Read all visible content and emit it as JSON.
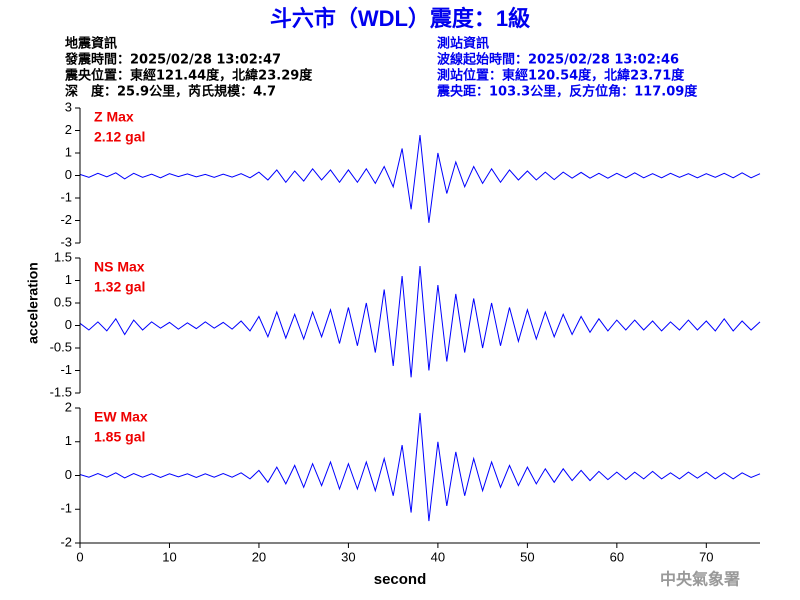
{
  "title": "斗六市（WDL）震度：1級",
  "event_info": [
    "地震資訊",
    "發震時間：2025/02/28 13:02:47",
    "震央位置：東經121.44度，北緯23.29度",
    "深　度：25.9公里，芮氏規模：4.7"
  ],
  "station_info": [
    "測站資訊",
    "波線起始時間：2025/02/28 13:02:46",
    "測站位置：東經120.54度，北緯23.71度",
    "震央距：103.3公里，反方位角：117.09度"
  ],
  "y_label": "acceleration",
  "x_label": "second",
  "footer": "中央氣象署",
  "chart_data": [
    {
      "type": "line",
      "annotation": "Z Max",
      "annotation_value": "2.12 gal",
      "color": "#0000ff",
      "annotation_color": "#ee0000",
      "xlim": [
        0,
        76
      ],
      "ylim": [
        -3,
        3
      ],
      "yticks": [
        -3,
        -2,
        -1,
        0,
        1,
        2,
        3
      ],
      "x": [
        0,
        1,
        2,
        3,
        4,
        5,
        6,
        7,
        8,
        9,
        10,
        11,
        12,
        13,
        14,
        15,
        16,
        17,
        18,
        19,
        20,
        21,
        22,
        23,
        24,
        25,
        26,
        27,
        28,
        29,
        30,
        31,
        32,
        33,
        34,
        35,
        36,
        37,
        38,
        39,
        40,
        41,
        42,
        43,
        44,
        45,
        46,
        47,
        48,
        49,
        50,
        51,
        52,
        53,
        54,
        55,
        56,
        57,
        58,
        59,
        60,
        61,
        62,
        63,
        64,
        65,
        66,
        67,
        68,
        69,
        70,
        71,
        72,
        73,
        74,
        75,
        76
      ],
      "values": [
        0.05,
        -0.08,
        0.1,
        -0.06,
        0.12,
        -0.15,
        0.1,
        -0.08,
        0.06,
        -0.1,
        0.08,
        -0.05,
        0.07,
        -0.06,
        0.05,
        -0.08,
        0.06,
        -0.07,
        0.08,
        -0.1,
        0.15,
        -0.2,
        0.25,
        -0.3,
        0.2,
        -0.25,
        0.3,
        -0.2,
        0.25,
        -0.3,
        0.25,
        -0.3,
        0.3,
        -0.35,
        0.4,
        -0.5,
        1.2,
        -1.5,
        1.8,
        -2.1,
        1.0,
        -0.8,
        0.6,
        -0.5,
        0.4,
        -0.35,
        0.3,
        -0.3,
        0.25,
        -0.2,
        0.2,
        -0.2,
        0.15,
        -0.18,
        0.15,
        -0.12,
        0.14,
        -0.12,
        0.1,
        -0.12,
        0.1,
        -0.1,
        0.12,
        -0.1,
        0.08,
        -0.1,
        0.1,
        -0.08,
        0.08,
        -0.1,
        0.08,
        -0.08,
        0.1,
        -0.1,
        0.12,
        -0.1,
        0.08
      ]
    },
    {
      "type": "line",
      "annotation": "NS Max",
      "annotation_value": "1.32 gal",
      "color": "#0000ff",
      "annotation_color": "#ee0000",
      "xlim": [
        0,
        76
      ],
      "ylim": [
        -1.5,
        1.5
      ],
      "yticks": [
        -1.5,
        -1,
        -0.5,
        0,
        0.5,
        1,
        1.5
      ],
      "x": [
        0,
        1,
        2,
        3,
        4,
        5,
        6,
        7,
        8,
        9,
        10,
        11,
        12,
        13,
        14,
        15,
        16,
        17,
        18,
        19,
        20,
        21,
        22,
        23,
        24,
        25,
        26,
        27,
        28,
        29,
        30,
        31,
        32,
        33,
        34,
        35,
        36,
        37,
        38,
        39,
        40,
        41,
        42,
        43,
        44,
        45,
        46,
        47,
        48,
        49,
        50,
        51,
        52,
        53,
        54,
        55,
        56,
        57,
        58,
        59,
        60,
        61,
        62,
        63,
        64,
        65,
        66,
        67,
        68,
        69,
        70,
        71,
        72,
        73,
        74,
        75,
        76
      ],
      "values": [
        0.05,
        -0.1,
        0.08,
        -0.12,
        0.15,
        -0.2,
        0.12,
        -0.1,
        0.08,
        -0.06,
        0.07,
        -0.08,
        0.06,
        -0.07,
        0.08,
        -0.06,
        0.07,
        -0.08,
        0.1,
        -0.12,
        0.2,
        -0.25,
        0.3,
        -0.28,
        0.25,
        -0.3,
        0.3,
        -0.25,
        0.35,
        -0.4,
        0.4,
        -0.45,
        0.5,
        -0.6,
        0.8,
        -0.9,
        1.1,
        -1.15,
        1.32,
        -1.0,
        0.9,
        -0.8,
        0.7,
        -0.6,
        0.6,
        -0.5,
        0.5,
        -0.45,
        0.4,
        -0.35,
        0.35,
        -0.3,
        0.3,
        -0.25,
        0.25,
        -0.2,
        0.2,
        -0.15,
        0.15,
        -0.12,
        0.12,
        -0.1,
        0.12,
        -0.1,
        0.1,
        -0.12,
        0.08,
        -0.1,
        0.12,
        -0.1,
        0.1,
        -0.12,
        0.15,
        -0.12,
        0.1,
        -0.1,
        0.08
      ]
    },
    {
      "type": "line",
      "annotation": "EW Max",
      "annotation_value": "1.85 gal",
      "color": "#0000ff",
      "annotation_color": "#ee0000",
      "xlim": [
        0,
        76
      ],
      "ylim": [
        -2,
        2
      ],
      "yticks": [
        -2,
        -1,
        0,
        1,
        2
      ],
      "xticks": [
        0,
        10,
        20,
        30,
        40,
        50,
        60,
        70
      ],
      "x": [
        0,
        1,
        2,
        3,
        4,
        5,
        6,
        7,
        8,
        9,
        10,
        11,
        12,
        13,
        14,
        15,
        16,
        17,
        18,
        19,
        20,
        21,
        22,
        23,
        24,
        25,
        26,
        27,
        28,
        29,
        30,
        31,
        32,
        33,
        34,
        35,
        36,
        37,
        38,
        39,
        40,
        41,
        42,
        43,
        44,
        45,
        46,
        47,
        48,
        49,
        50,
        51,
        52,
        53,
        54,
        55,
        56,
        57,
        58,
        59,
        60,
        61,
        62,
        63,
        64,
        65,
        66,
        67,
        68,
        69,
        70,
        71,
        72,
        73,
        74,
        75,
        76
      ],
      "values": [
        0.03,
        -0.05,
        0.06,
        -0.05,
        0.08,
        -0.07,
        0.06,
        -0.05,
        0.05,
        -0.06,
        0.05,
        -0.04,
        0.05,
        -0.06,
        0.05,
        -0.05,
        0.06,
        -0.05,
        0.08,
        -0.1,
        0.15,
        -0.2,
        0.25,
        -0.25,
        0.3,
        -0.35,
        0.35,
        -0.3,
        0.4,
        -0.4,
        0.35,
        -0.4,
        0.4,
        -0.45,
        0.5,
        -0.6,
        0.9,
        -1.1,
        1.85,
        -1.35,
        1.0,
        -0.9,
        0.7,
        -0.6,
        0.5,
        -0.45,
        0.4,
        -0.35,
        0.3,
        -0.3,
        0.25,
        -0.25,
        0.2,
        -0.2,
        0.2,
        -0.15,
        0.15,
        -0.15,
        0.12,
        -0.12,
        0.1,
        -0.12,
        0.1,
        -0.1,
        0.12,
        -0.1,
        0.08,
        -0.1,
        0.1,
        -0.08,
        0.1,
        -0.1,
        0.08,
        -0.1,
        0.08,
        -0.06,
        0.05
      ]
    }
  ]
}
